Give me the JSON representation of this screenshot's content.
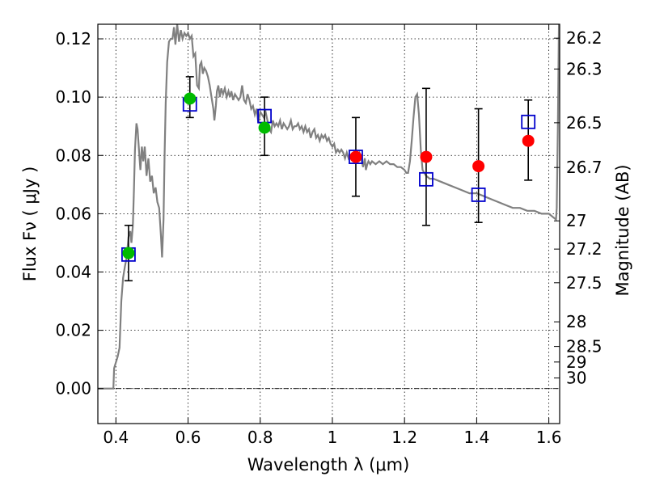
{
  "chart_data": {
    "type": "scatter",
    "xlabel": "Wavelength  λ (μm)",
    "ylabel": "Flux  Fν  ( μJy )",
    "ylabel_right": "Magnitude (AB)",
    "xlim": [
      0.35,
      1.63
    ],
    "ylim": [
      -0.012,
      0.125
    ],
    "grid": true,
    "x_ticks": [
      {
        "value": 0.4,
        "label": "0.4"
      },
      {
        "value": 0.6,
        "label": "0.6"
      },
      {
        "value": 0.8,
        "label": "0.8"
      },
      {
        "value": 1.0,
        "label": "1"
      },
      {
        "value": 1.2,
        "label": "1.2"
      },
      {
        "value": 1.4,
        "label": "1.4"
      },
      {
        "value": 1.6,
        "label": "1.6"
      }
    ],
    "y_ticks": [
      {
        "value": 0.0,
        "label": "0.00"
      },
      {
        "value": 0.02,
        "label": "0.02"
      },
      {
        "value": 0.04,
        "label": "0.04"
      },
      {
        "value": 0.06,
        "label": "0.06"
      },
      {
        "value": 0.08,
        "label": "0.08"
      },
      {
        "value": 0.1,
        "label": "0.10"
      },
      {
        "value": 0.12,
        "label": "0.12"
      }
    ],
    "mag_ticks": [
      {
        "value": 26.2,
        "label": "26.2"
      },
      {
        "value": 26.3,
        "label": "26.3"
      },
      {
        "value": 26.5,
        "label": "26.5"
      },
      {
        "value": 26.7,
        "label": "26.7"
      },
      {
        "value": 27.0,
        "label": "27"
      },
      {
        "value": 27.2,
        "label": "27.2"
      },
      {
        "value": 27.5,
        "label": "27.5"
      },
      {
        "value": 28.0,
        "label": "28"
      },
      {
        "value": 28.5,
        "label": "28.5"
      },
      {
        "value": 29.0,
        "label": "29"
      },
      {
        "value": 30.0,
        "label": "30"
      }
    ],
    "zero_line": 0.0,
    "series": [
      {
        "kind": "line",
        "color": "#808080",
        "points": [
          [
            0.35,
            0.0
          ],
          [
            0.39,
            0.0
          ],
          [
            0.393,
            0.0
          ],
          [
            0.395,
            0.007
          ],
          [
            0.405,
            0.011
          ],
          [
            0.41,
            0.014
          ],
          [
            0.415,
            0.03
          ],
          [
            0.42,
            0.038
          ],
          [
            0.425,
            0.042
          ],
          [
            0.43,
            0.045
          ],
          [
            0.435,
            0.052
          ],
          [
            0.44,
            0.054
          ],
          [
            0.443,
            0.05
          ],
          [
            0.447,
            0.056
          ],
          [
            0.45,
            0.068
          ],
          [
            0.453,
            0.082
          ],
          [
            0.457,
            0.091
          ],
          [
            0.46,
            0.089
          ],
          [
            0.465,
            0.08
          ],
          [
            0.468,
            0.075
          ],
          [
            0.472,
            0.083
          ],
          [
            0.476,
            0.078
          ],
          [
            0.48,
            0.083
          ],
          [
            0.485,
            0.073
          ],
          [
            0.49,
            0.079
          ],
          [
            0.495,
            0.071
          ],
          [
            0.5,
            0.073
          ],
          [
            0.505,
            0.067
          ],
          [
            0.51,
            0.069
          ],
          [
            0.515,
            0.064
          ],
          [
            0.52,
            0.062
          ],
          [
            0.525,
            0.052
          ],
          [
            0.528,
            0.045
          ],
          [
            0.532,
            0.058
          ],
          [
            0.535,
            0.08
          ],
          [
            0.538,
            0.098
          ],
          [
            0.542,
            0.112
          ],
          [
            0.547,
            0.119
          ],
          [
            0.552,
            0.12
          ],
          [
            0.557,
            0.12
          ],
          [
            0.561,
            0.124
          ],
          [
            0.565,
            0.118
          ],
          [
            0.57,
            0.125
          ],
          [
            0.575,
            0.119
          ],
          [
            0.58,
            0.123
          ],
          [
            0.585,
            0.12
          ],
          [
            0.59,
            0.122
          ],
          [
            0.595,
            0.121
          ],
          [
            0.6,
            0.122
          ],
          [
            0.605,
            0.12
          ],
          [
            0.61,
            0.121
          ],
          [
            0.615,
            0.114
          ],
          [
            0.62,
            0.115
          ],
          [
            0.625,
            0.104
          ],
          [
            0.63,
            0.103
          ],
          [
            0.633,
            0.111
          ],
          [
            0.637,
            0.112
          ],
          [
            0.641,
            0.108
          ],
          [
            0.645,
            0.11
          ],
          [
            0.65,
            0.109
          ],
          [
            0.655,
            0.107
          ],
          [
            0.66,
            0.104
          ],
          [
            0.665,
            0.1
          ],
          [
            0.67,
            0.096
          ],
          [
            0.673,
            0.092
          ],
          [
            0.677,
            0.097
          ],
          [
            0.68,
            0.102
          ],
          [
            0.684,
            0.104
          ],
          [
            0.688,
            0.1
          ],
          [
            0.692,
            0.103
          ],
          [
            0.697,
            0.101
          ],
          [
            0.702,
            0.103
          ],
          [
            0.707,
            0.1
          ],
          [
            0.712,
            0.102
          ],
          [
            0.716,
            0.1
          ],
          [
            0.72,
            0.102
          ],
          [
            0.725,
            0.099
          ],
          [
            0.73,
            0.101
          ],
          [
            0.735,
            0.1
          ],
          [
            0.74,
            0.099
          ],
          [
            0.745,
            0.1
          ],
          [
            0.75,
            0.104
          ],
          [
            0.755,
            0.099
          ],
          [
            0.76,
            0.098
          ],
          [
            0.765,
            0.101
          ],
          [
            0.77,
            0.099
          ],
          [
            0.775,
            0.096
          ],
          [
            0.78,
            0.097
          ],
          [
            0.785,
            0.094
          ],
          [
            0.79,
            0.096
          ],
          [
            0.795,
            0.091
          ],
          [
            0.8,
            0.095
          ],
          [
            0.805,
            0.094
          ],
          [
            0.81,
            0.093
          ],
          [
            0.815,
            0.095
          ],
          [
            0.82,
            0.092
          ],
          [
            0.825,
            0.089
          ],
          [
            0.83,
            0.088
          ],
          [
            0.835,
            0.092
          ],
          [
            0.84,
            0.09
          ],
          [
            0.845,
            0.091
          ],
          [
            0.85,
            0.09
          ],
          [
            0.855,
            0.092
          ],
          [
            0.86,
            0.089
          ],
          [
            0.865,
            0.091
          ],
          [
            0.87,
            0.09
          ],
          [
            0.875,
            0.089
          ],
          [
            0.88,
            0.09
          ],
          [
            0.885,
            0.092
          ],
          [
            0.89,
            0.089
          ],
          [
            0.895,
            0.09
          ],
          [
            0.9,
            0.09
          ],
          [
            0.905,
            0.091
          ],
          [
            0.91,
            0.089
          ],
          [
            0.915,
            0.09
          ],
          [
            0.92,
            0.088
          ],
          [
            0.925,
            0.09
          ],
          [
            0.93,
            0.088
          ],
          [
            0.935,
            0.089
          ],
          [
            0.94,
            0.086
          ],
          [
            0.945,
            0.088
          ],
          [
            0.95,
            0.089
          ],
          [
            0.955,
            0.086
          ],
          [
            0.96,
            0.087
          ],
          [
            0.965,
            0.085
          ],
          [
            0.97,
            0.087
          ],
          [
            0.975,
            0.086
          ],
          [
            0.98,
            0.087
          ],
          [
            0.985,
            0.085
          ],
          [
            0.99,
            0.086
          ],
          [
            0.995,
            0.084
          ],
          [
            1.0,
            0.083
          ],
          [
            1.005,
            0.084
          ],
          [
            1.01,
            0.081
          ],
          [
            1.015,
            0.082
          ],
          [
            1.02,
            0.081
          ],
          [
            1.025,
            0.082
          ],
          [
            1.03,
            0.081
          ],
          [
            1.035,
            0.079
          ],
          [
            1.04,
            0.081
          ],
          [
            1.045,
            0.079
          ],
          [
            1.05,
            0.08
          ],
          [
            1.055,
            0.079
          ],
          [
            1.06,
            0.081
          ],
          [
            1.065,
            0.08
          ],
          [
            1.07,
            0.08
          ],
          [
            1.075,
            0.081
          ],
          [
            1.08,
            0.079
          ],
          [
            1.085,
            0.076
          ],
          [
            1.09,
            0.079
          ],
          [
            1.093,
            0.075
          ],
          [
            1.097,
            0.077
          ],
          [
            1.1,
            0.078
          ],
          [
            1.105,
            0.077
          ],
          [
            1.11,
            0.078
          ],
          [
            1.12,
            0.077
          ],
          [
            1.13,
            0.078
          ],
          [
            1.14,
            0.077
          ],
          [
            1.15,
            0.078
          ],
          [
            1.16,
            0.077
          ],
          [
            1.17,
            0.077
          ],
          [
            1.18,
            0.076
          ],
          [
            1.19,
            0.076
          ],
          [
            1.2,
            0.075
          ],
          [
            1.205,
            0.074
          ],
          [
            1.21,
            0.074
          ],
          [
            1.215,
            0.078
          ],
          [
            1.22,
            0.085
          ],
          [
            1.225,
            0.093
          ],
          [
            1.23,
            0.1
          ],
          [
            1.235,
            0.101
          ],
          [
            1.24,
            0.094
          ],
          [
            1.245,
            0.082
          ],
          [
            1.25,
            0.075
          ],
          [
            1.26,
            0.073
          ],
          [
            1.27,
            0.072
          ],
          [
            1.28,
            0.072
          ],
          [
            1.3,
            0.071
          ],
          [
            1.32,
            0.07
          ],
          [
            1.34,
            0.069
          ],
          [
            1.36,
            0.068
          ],
          [
            1.38,
            0.067
          ],
          [
            1.4,
            0.067
          ],
          [
            1.42,
            0.066
          ],
          [
            1.44,
            0.065
          ],
          [
            1.46,
            0.064
          ],
          [
            1.48,
            0.063
          ],
          [
            1.5,
            0.062
          ],
          [
            1.52,
            0.062
          ],
          [
            1.54,
            0.061
          ],
          [
            1.56,
            0.061
          ],
          [
            1.58,
            0.06
          ],
          [
            1.6,
            0.06
          ],
          [
            1.61,
            0.059
          ],
          [
            1.62,
            0.058
          ],
          [
            1.622,
            0.062
          ],
          [
            1.625,
            0.09
          ],
          [
            1.628,
            0.125
          ]
        ]
      },
      {
        "kind": "squares",
        "color": "#0000cc",
        "points": [
          [
            0.435,
            0.046
          ],
          [
            0.605,
            0.0975
          ],
          [
            0.812,
            0.0935
          ],
          [
            1.065,
            0.0795
          ],
          [
            1.26,
            0.0718
          ],
          [
            1.405,
            0.0665
          ],
          [
            1.543,
            0.0915
          ]
        ]
      },
      {
        "kind": "circles",
        "color": "#00bb00",
        "points": [
          [
            0.435,
            0.0465
          ],
          [
            0.605,
            0.0995
          ],
          [
            0.812,
            0.0895
          ]
        ]
      },
      {
        "kind": "circles",
        "color": "#ff0000",
        "points": [
          [
            1.065,
            0.0795
          ],
          [
            1.26,
            0.0795
          ],
          [
            1.405,
            0.0763
          ],
          [
            1.543,
            0.085
          ]
        ]
      }
    ],
    "error_bars": [
      {
        "x": 0.435,
        "low": 0.037,
        "high": 0.056
      },
      {
        "x": 0.605,
        "low": 0.093,
        "high": 0.107
      },
      {
        "x": 0.812,
        "low": 0.08,
        "high": 0.1
      },
      {
        "x": 1.065,
        "low": 0.066,
        "high": 0.093
      },
      {
        "x": 1.26,
        "low": 0.056,
        "high": 0.103
      },
      {
        "x": 1.405,
        "low": 0.057,
        "high": 0.096
      },
      {
        "x": 1.543,
        "low": 0.0715,
        "high": 0.099
      }
    ]
  }
}
